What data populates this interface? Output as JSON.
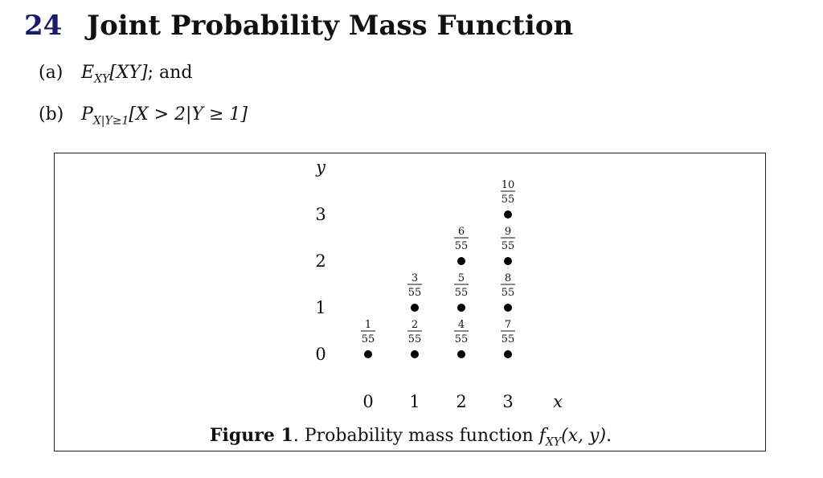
{
  "heading": {
    "number": "24",
    "title": "Joint Probability Mass Function"
  },
  "items": [
    {
      "label": "(a)",
      "expr_main": "E",
      "expr_sub": "XY",
      "expr_rest": "[XY]",
      "tail": "; and"
    },
    {
      "label": "(b)",
      "expr_main": "P",
      "expr_sub": "X|Y≥1",
      "expr_rest": "[X > 2|Y ≥ 1]",
      "tail": ""
    }
  ],
  "figure": {
    "caption_label": "Figure 1",
    "caption_text": ". Probability mass function ",
    "caption_math": "f",
    "caption_math_sub": "XY",
    "caption_math_rest": "(x, y)",
    "caption_end": "."
  },
  "chart_data": {
    "type": "scatter",
    "xlabel": "x",
    "ylabel": "y",
    "x_ticks": [
      0,
      1,
      2,
      3
    ],
    "y_ticks": [
      0,
      1,
      2,
      3
    ],
    "points": [
      {
        "x": 0,
        "y": 0,
        "num": "1",
        "den": "55"
      },
      {
        "x": 1,
        "y": 0,
        "num": "2",
        "den": "55"
      },
      {
        "x": 1,
        "y": 1,
        "num": "3",
        "den": "55"
      },
      {
        "x": 2,
        "y": 0,
        "num": "4",
        "den": "55"
      },
      {
        "x": 2,
        "y": 1,
        "num": "5",
        "den": "55"
      },
      {
        "x": 2,
        "y": 2,
        "num": "6",
        "den": "55"
      },
      {
        "x": 3,
        "y": 0,
        "num": "7",
        "den": "55"
      },
      {
        "x": 3,
        "y": 1,
        "num": "8",
        "den": "55"
      },
      {
        "x": 3,
        "y": 2,
        "num": "9",
        "den": "55"
      },
      {
        "x": 3,
        "y": 3,
        "num": "10",
        "den": "55"
      }
    ]
  }
}
